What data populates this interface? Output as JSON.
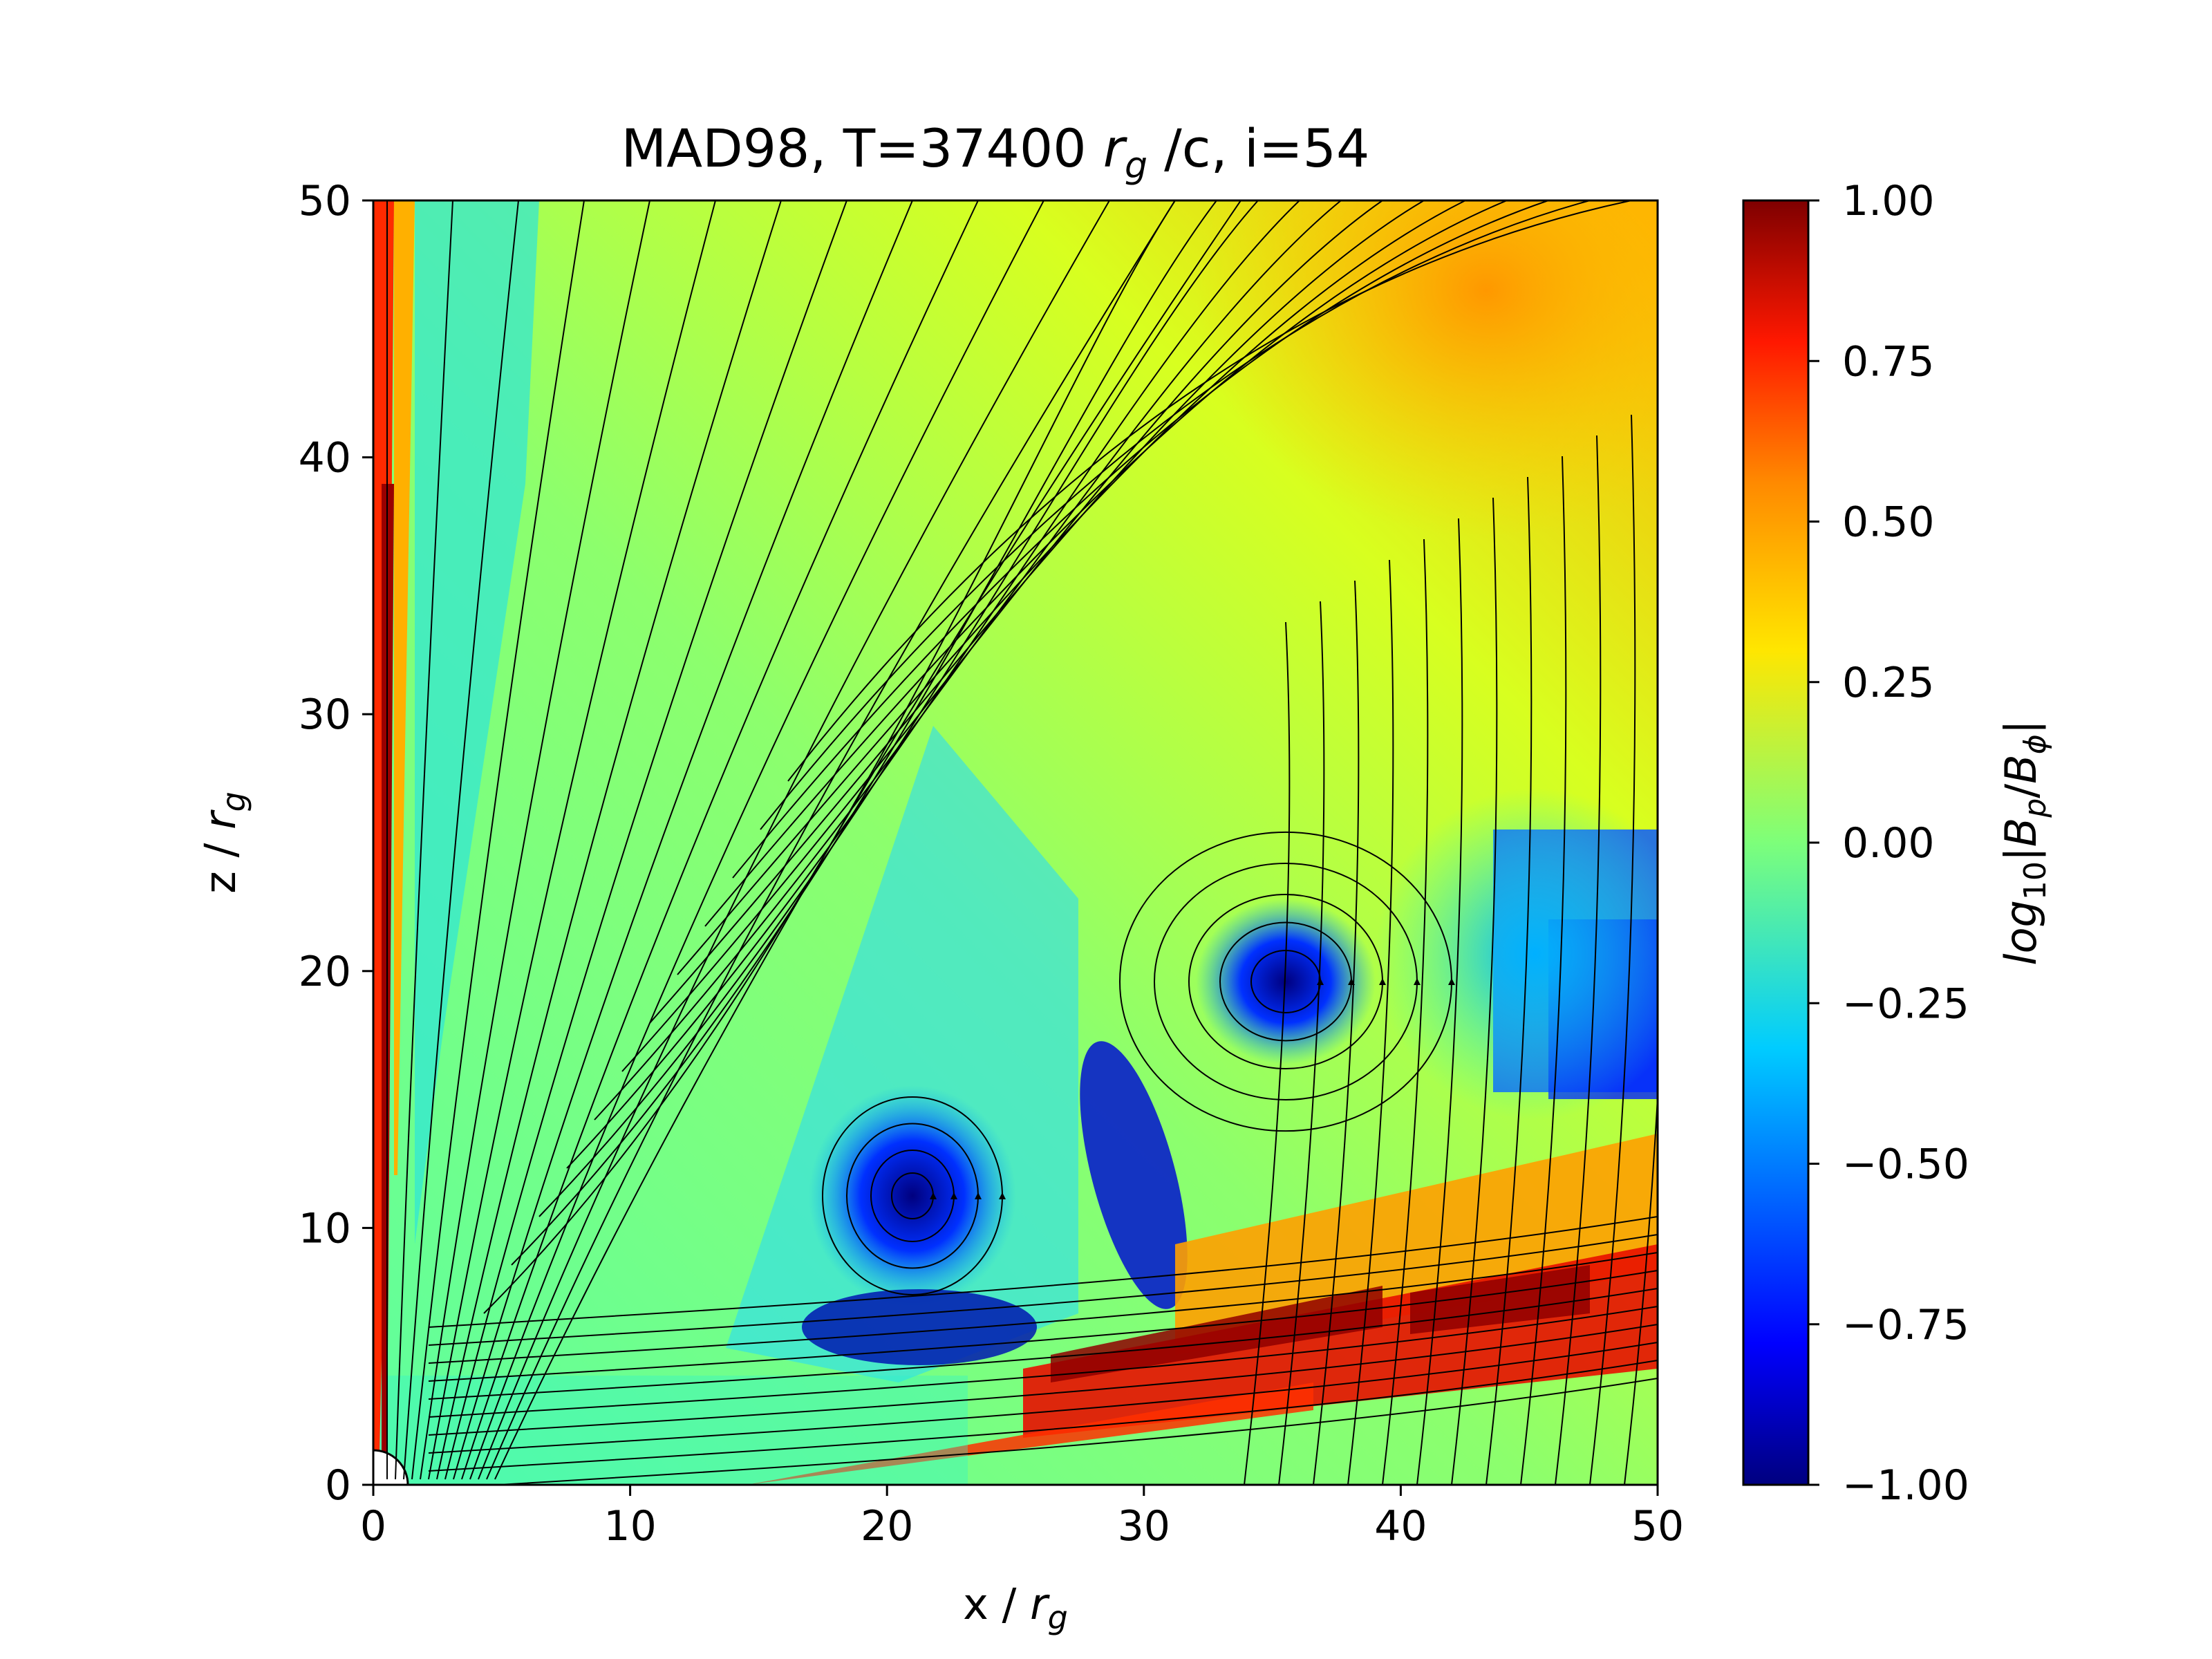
{
  "figure": {
    "title_parts": {
      "prefix": "MAD98, T=37400 ",
      "r": "r",
      "g": "g",
      "suffix": " /c, i=54"
    }
  },
  "chart_data": {
    "type": "heatmap",
    "title": "MAD98, T=37400 r_g /c, i=54",
    "xlabel": "x / r_g",
    "ylabel": "z / r_g",
    "colorbar_label": "log10|Bp/Bφ|",
    "xlim": [
      0,
      50
    ],
    "ylim": [
      0,
      50
    ],
    "clim": [
      -1.0,
      1.0
    ],
    "colormap": "jet",
    "x_ticks": [
      "0",
      "10",
      "20",
      "30",
      "40",
      "50"
    ],
    "y_ticks": [
      "0",
      "10",
      "20",
      "30",
      "40",
      "50"
    ],
    "colorbar_ticks": [
      "1.00",
      "0.75",
      "0.50",
      "0.25",
      "0.00",
      "−0.25",
      "−0.50",
      "−0.75",
      "−1.00"
    ],
    "overlay": "magnetic field streamlines with arrows",
    "features": [
      {
        "kind": "loop",
        "center": [
          35.5,
          19.5
        ],
        "value": -1.0
      },
      {
        "kind": "loop",
        "center": [
          21.5,
          11
        ],
        "value": -0.7
      },
      {
        "kind": "vertical_jet_edge",
        "x": [
          0,
          1.5
        ],
        "value": 0.9
      },
      {
        "kind": "hot_band",
        "from": [
          16,
          4
        ],
        "to": [
          50,
          9
        ],
        "value": 0.9
      },
      {
        "kind": "upper_right_region",
        "center": [
          45,
          45
        ],
        "value": 0.45
      }
    ]
  },
  "colors": {
    "colormap_ends": [
      "#00007f",
      "#7f0000"
    ]
  }
}
